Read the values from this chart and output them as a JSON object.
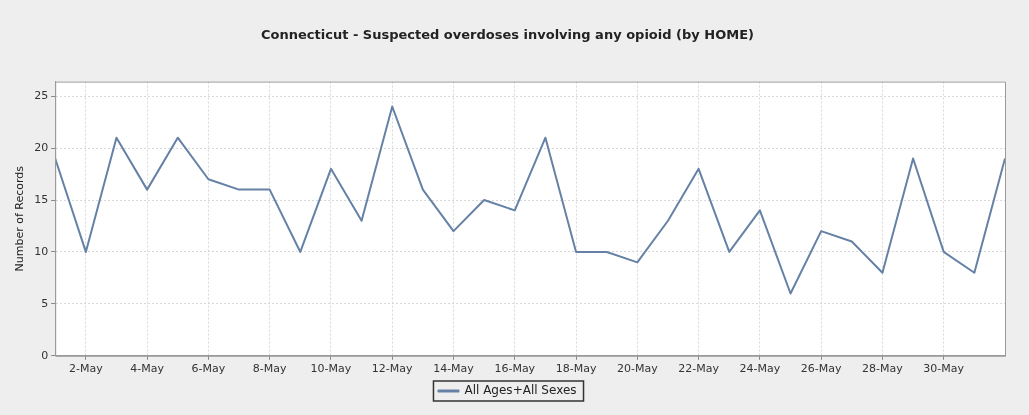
{
  "chart_data": {
    "type": "line",
    "title": "Connecticut - Suspected overdoses involving any opioid (by HOME)",
    "ylabel": "Number of Records",
    "x": [
      "--05-01",
      "--05-02",
      "--05-03",
      "--05-04",
      "--05-05",
      "--05-06",
      "--05-07",
      "--05-08",
      "--05-09",
      "--05-10",
      "--05-11",
      "--05-12",
      "--05-13",
      "--05-14",
      "--05-15",
      "--05-16",
      "--05-17",
      "--05-18",
      "--05-19",
      "--05-20",
      "--05-21",
      "--05-22",
      "--05-23",
      "--05-24",
      "--05-25",
      "--05-26",
      "--05-27",
      "--05-28",
      "--05-29",
      "--05-30",
      "--05-31",
      "--06-01"
    ],
    "series": [
      {
        "name": "All Ages+All Sexes",
        "color": "#6681a6",
        "values": [
          19,
          10,
          21,
          16,
          21,
          17,
          16,
          16,
          10,
          18,
          13,
          24,
          16,
          12,
          15,
          14,
          21,
          10,
          10,
          9,
          13,
          18,
          10,
          14,
          6,
          12,
          11,
          8,
          19,
          10,
          8,
          19
        ]
      }
    ],
    "xlim": [
      "--05-01",
      "--06-01"
    ],
    "xticks": [
      {
        "value": "--05-02",
        "label": "2-May"
      },
      {
        "value": "--05-04",
        "label": "4-May"
      },
      {
        "value": "--05-06",
        "label": "6-May"
      },
      {
        "value": "--05-08",
        "label": "8-May"
      },
      {
        "value": "--05-10",
        "label": "10-May"
      },
      {
        "value": "--05-12",
        "label": "12-May"
      },
      {
        "value": "--05-14",
        "label": "14-May"
      },
      {
        "value": "--05-16",
        "label": "16-May"
      },
      {
        "value": "--05-18",
        "label": "18-May"
      },
      {
        "value": "--05-20",
        "label": "20-May"
      },
      {
        "value": "--05-22",
        "label": "22-May"
      },
      {
        "value": "--05-24",
        "label": "24-May"
      },
      {
        "value": "--05-26",
        "label": "26-May"
      },
      {
        "value": "--05-28",
        "label": "28-May"
      },
      {
        "value": "--05-30",
        "label": "30-May"
      }
    ],
    "ylim": [
      0,
      26.4
    ],
    "yticks": [
      0,
      5,
      10,
      15,
      20,
      25
    ],
    "grid": true,
    "legend": "bottom",
    "marker": "none",
    "line_style": "solid"
  }
}
